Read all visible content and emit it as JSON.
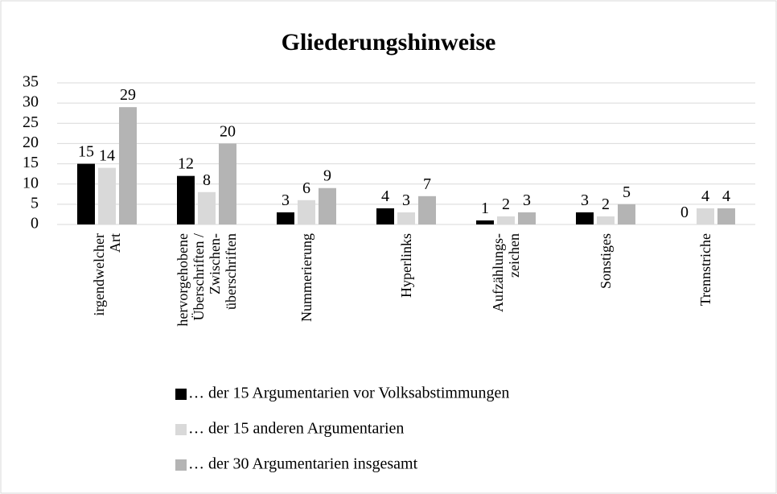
{
  "chart_data": {
    "type": "bar",
    "title": "Gliederungshinweise",
    "categories": [
      "irgendwelcher\nArt",
      "hervorgehobene\nÜberschriften /\nZwischen-\nüberschriften",
      "Nummerierung",
      "Hyperlinks",
      "Aufzählungs-\nzeichen",
      "Sonstiges",
      "Trennstriche"
    ],
    "series": [
      {
        "name": "… der 15 Argumentarien vor Volksabstimmungen",
        "color": "#000000",
        "values": [
          15,
          12,
          3,
          4,
          1,
          3,
          0
        ]
      },
      {
        "name": "… der 15 anderen Argumentarien",
        "color": "#d9d9d9",
        "values": [
          14,
          8,
          6,
          3,
          2,
          2,
          4
        ]
      },
      {
        "name": "… der 30 Argumentarien insgesamt",
        "color": "#b4b4b4",
        "values": [
          29,
          20,
          9,
          7,
          3,
          5,
          4
        ]
      }
    ],
    "ylim": [
      0,
      35
    ],
    "yticks": [
      0,
      5,
      10,
      15,
      20,
      25,
      30,
      35
    ],
    "grid": true,
    "legend": "bottom"
  }
}
